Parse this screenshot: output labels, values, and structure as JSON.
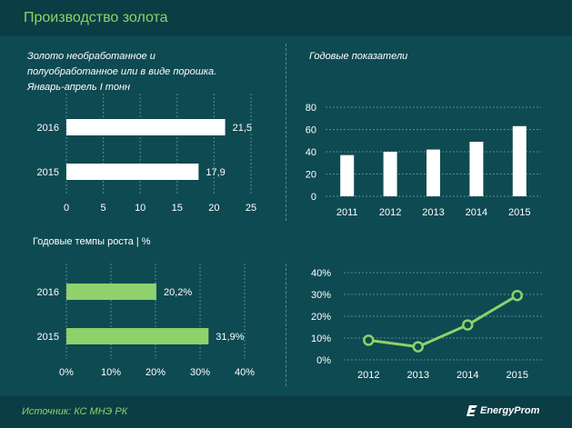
{
  "title": "Производство золота",
  "chart_data": [
    {
      "type": "bar",
      "orientation": "horizontal",
      "title": "Золото необработанное и полуобработанное или в виде порошка. Январь-апрель I тонн",
      "title_lines": [
        "Золото необработанное и",
        "полуобработанное или в виде порошка.",
        "Январь-апрель I тонн"
      ],
      "categories": [
        "2016",
        "2015"
      ],
      "values": [
        21.5,
        17.9
      ],
      "value_labels": [
        "21,5",
        "17,9"
      ],
      "xlim": [
        0,
        25
      ],
      "x_ticks": [
        "0",
        "5",
        "10",
        "15",
        "20",
        "25"
      ],
      "bar_color": "#ffffff",
      "grid": true
    },
    {
      "type": "bar",
      "title": "Годовые показатели",
      "categories": [
        "2011",
        "2012",
        "2013",
        "2014",
        "2015"
      ],
      "values": [
        37,
        40,
        42,
        49,
        63
      ],
      "ylim": [
        0,
        80
      ],
      "y_ticks": [
        "0",
        "20",
        "40",
        "60",
        "80"
      ],
      "bar_color": "#ffffff",
      "grid": true
    },
    {
      "type": "bar",
      "orientation": "horizontal",
      "title": "Годовые темпы роста | %",
      "categories": [
        "2016",
        "2015"
      ],
      "values": [
        20.2,
        31.9
      ],
      "value_labels": [
        "20,2%",
        "31,9%"
      ],
      "xlim": [
        0,
        40
      ],
      "x_ticks": [
        "0%",
        "10%",
        "20%",
        "30%",
        "40%"
      ],
      "bar_color": "#8fd16a",
      "grid": true
    },
    {
      "type": "line",
      "x": [
        "2012",
        "2013",
        "2014",
        "2015"
      ],
      "values": [
        9,
        6,
        16,
        29.5
      ],
      "ylim": [
        0,
        40
      ],
      "y_ticks": [
        "0%",
        "10%",
        "20%",
        "30%",
        "40%"
      ],
      "line_color": "#8fd16a",
      "grid": true
    }
  ],
  "footer": {
    "source": "Источник: КС МНЭ РК",
    "logo": "EnergyProm"
  }
}
